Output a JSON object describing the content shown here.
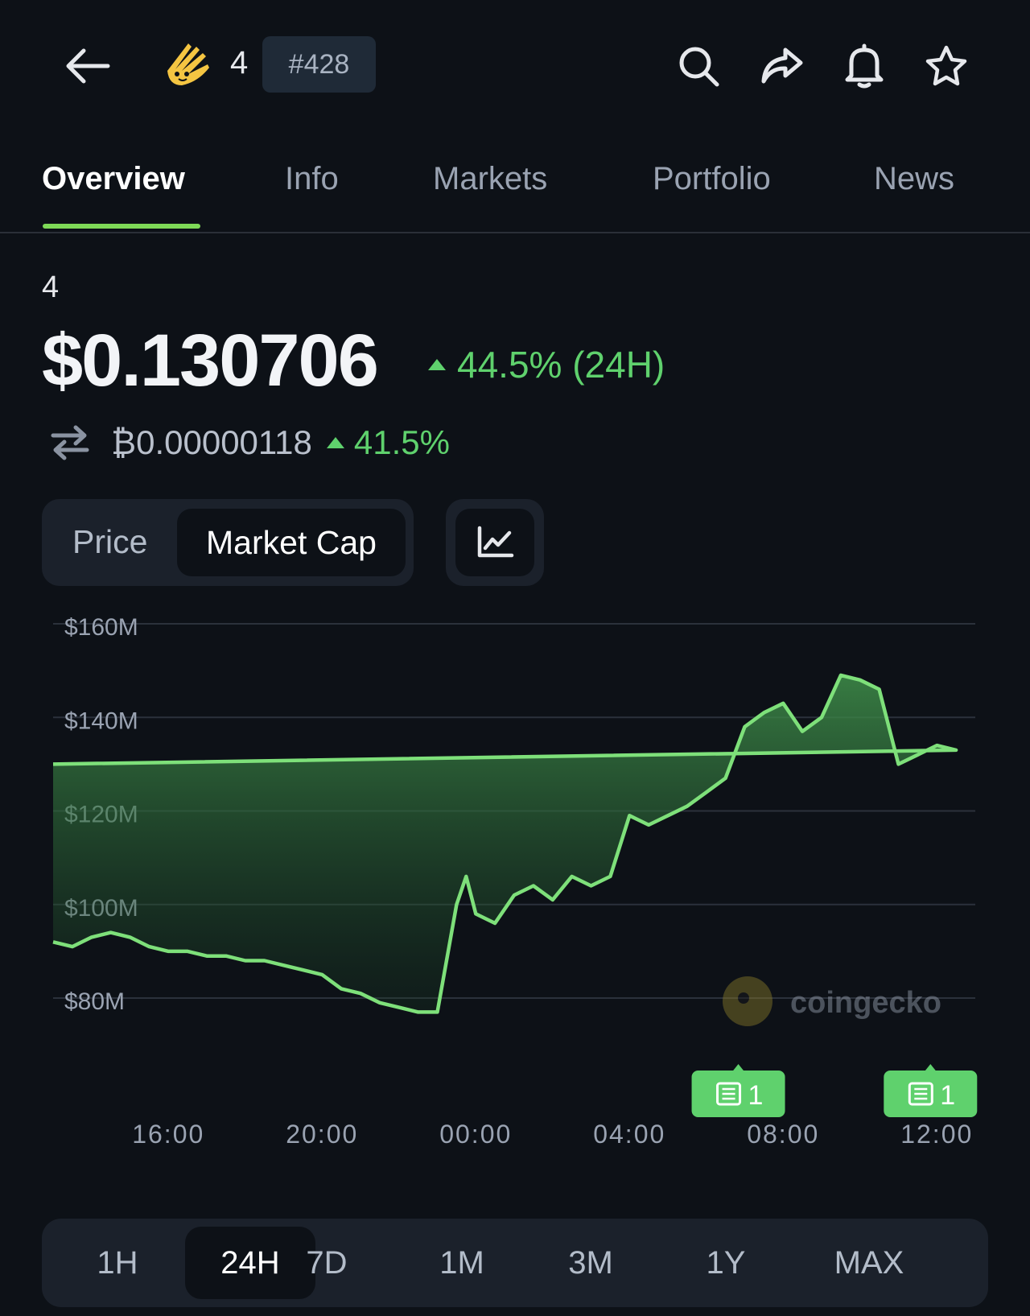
{
  "header": {
    "coin_symbol": "4",
    "rank": "#428",
    "icons": [
      "back-arrow-icon",
      "coin-logo",
      "search-icon",
      "share-icon",
      "bell-icon",
      "star-icon"
    ]
  },
  "tabs": [
    "Overview",
    "Info",
    "Markets",
    "Portfolio",
    "News"
  ],
  "active_tab": "Overview",
  "coin": {
    "name": "4",
    "price": "$0.130706",
    "change_24h": "44.5% (24H)",
    "btc_price": "₿0.00000118",
    "btc_change": "41.5%"
  },
  "toggle": {
    "price_label": "Price",
    "mcap_label": "Market Cap",
    "selected": "Market Cap"
  },
  "colors": {
    "accent": "#7ed957",
    "positive": "#5fd16d",
    "background": "#0d1117",
    "panel": "#1b212b"
  },
  "chart_data": {
    "type": "area",
    "y_tick_labels": [
      "$160M",
      "$140M",
      "$120M",
      "$100M",
      "$80M"
    ],
    "x_tick_labels": [
      "16:00",
      "20:00",
      "00:00",
      "04:00",
      "08:00",
      "12:00"
    ],
    "ylim": [
      80,
      160
    ],
    "y_unit": "$M",
    "x": [
      "13:00",
      "13:30",
      "14:00",
      "14:30",
      "15:00",
      "15:30",
      "16:00",
      "16:30",
      "17:00",
      "17:30",
      "18:00",
      "18:30",
      "19:00",
      "19:30",
      "20:00",
      "20:30",
      "21:00",
      "21:30",
      "22:00",
      "22:30",
      "23:00",
      "23:30",
      "23:45",
      "00:00",
      "00:30",
      "01:00",
      "01:30",
      "02:00",
      "02:30",
      "03:00",
      "03:30",
      "04:00",
      "04:30",
      "05:00",
      "05:30",
      "06:00",
      "06:30",
      "07:00",
      "07:30",
      "08:00",
      "08:30",
      "09:00",
      "09:30",
      "10:00",
      "10:30",
      "11:00",
      "11:30",
      "12:00",
      "12:30",
      "13:00"
    ],
    "values": [
      92,
      91,
      93,
      94,
      93,
      91,
      90,
      90,
      89,
      89,
      88,
      88,
      87,
      86,
      85,
      82,
      81,
      79,
      78,
      77,
      77,
      100,
      106,
      98,
      96,
      102,
      104,
      101,
      106,
      104,
      106,
      119,
      117,
      119,
      121,
      124,
      127,
      138,
      141,
      143,
      137,
      140,
      149,
      148,
      146,
      130,
      132,
      134,
      133,
      130
    ],
    "watermark": "coingecko",
    "news_markers": [
      {
        "time": "06:50",
        "count": "1"
      },
      {
        "time": "11:50",
        "count": "1"
      }
    ],
    "grid": true
  },
  "ranges": [
    "1H",
    "24H",
    "7D",
    "1M",
    "3M",
    "1Y",
    "MAX"
  ],
  "active_range": "24H"
}
